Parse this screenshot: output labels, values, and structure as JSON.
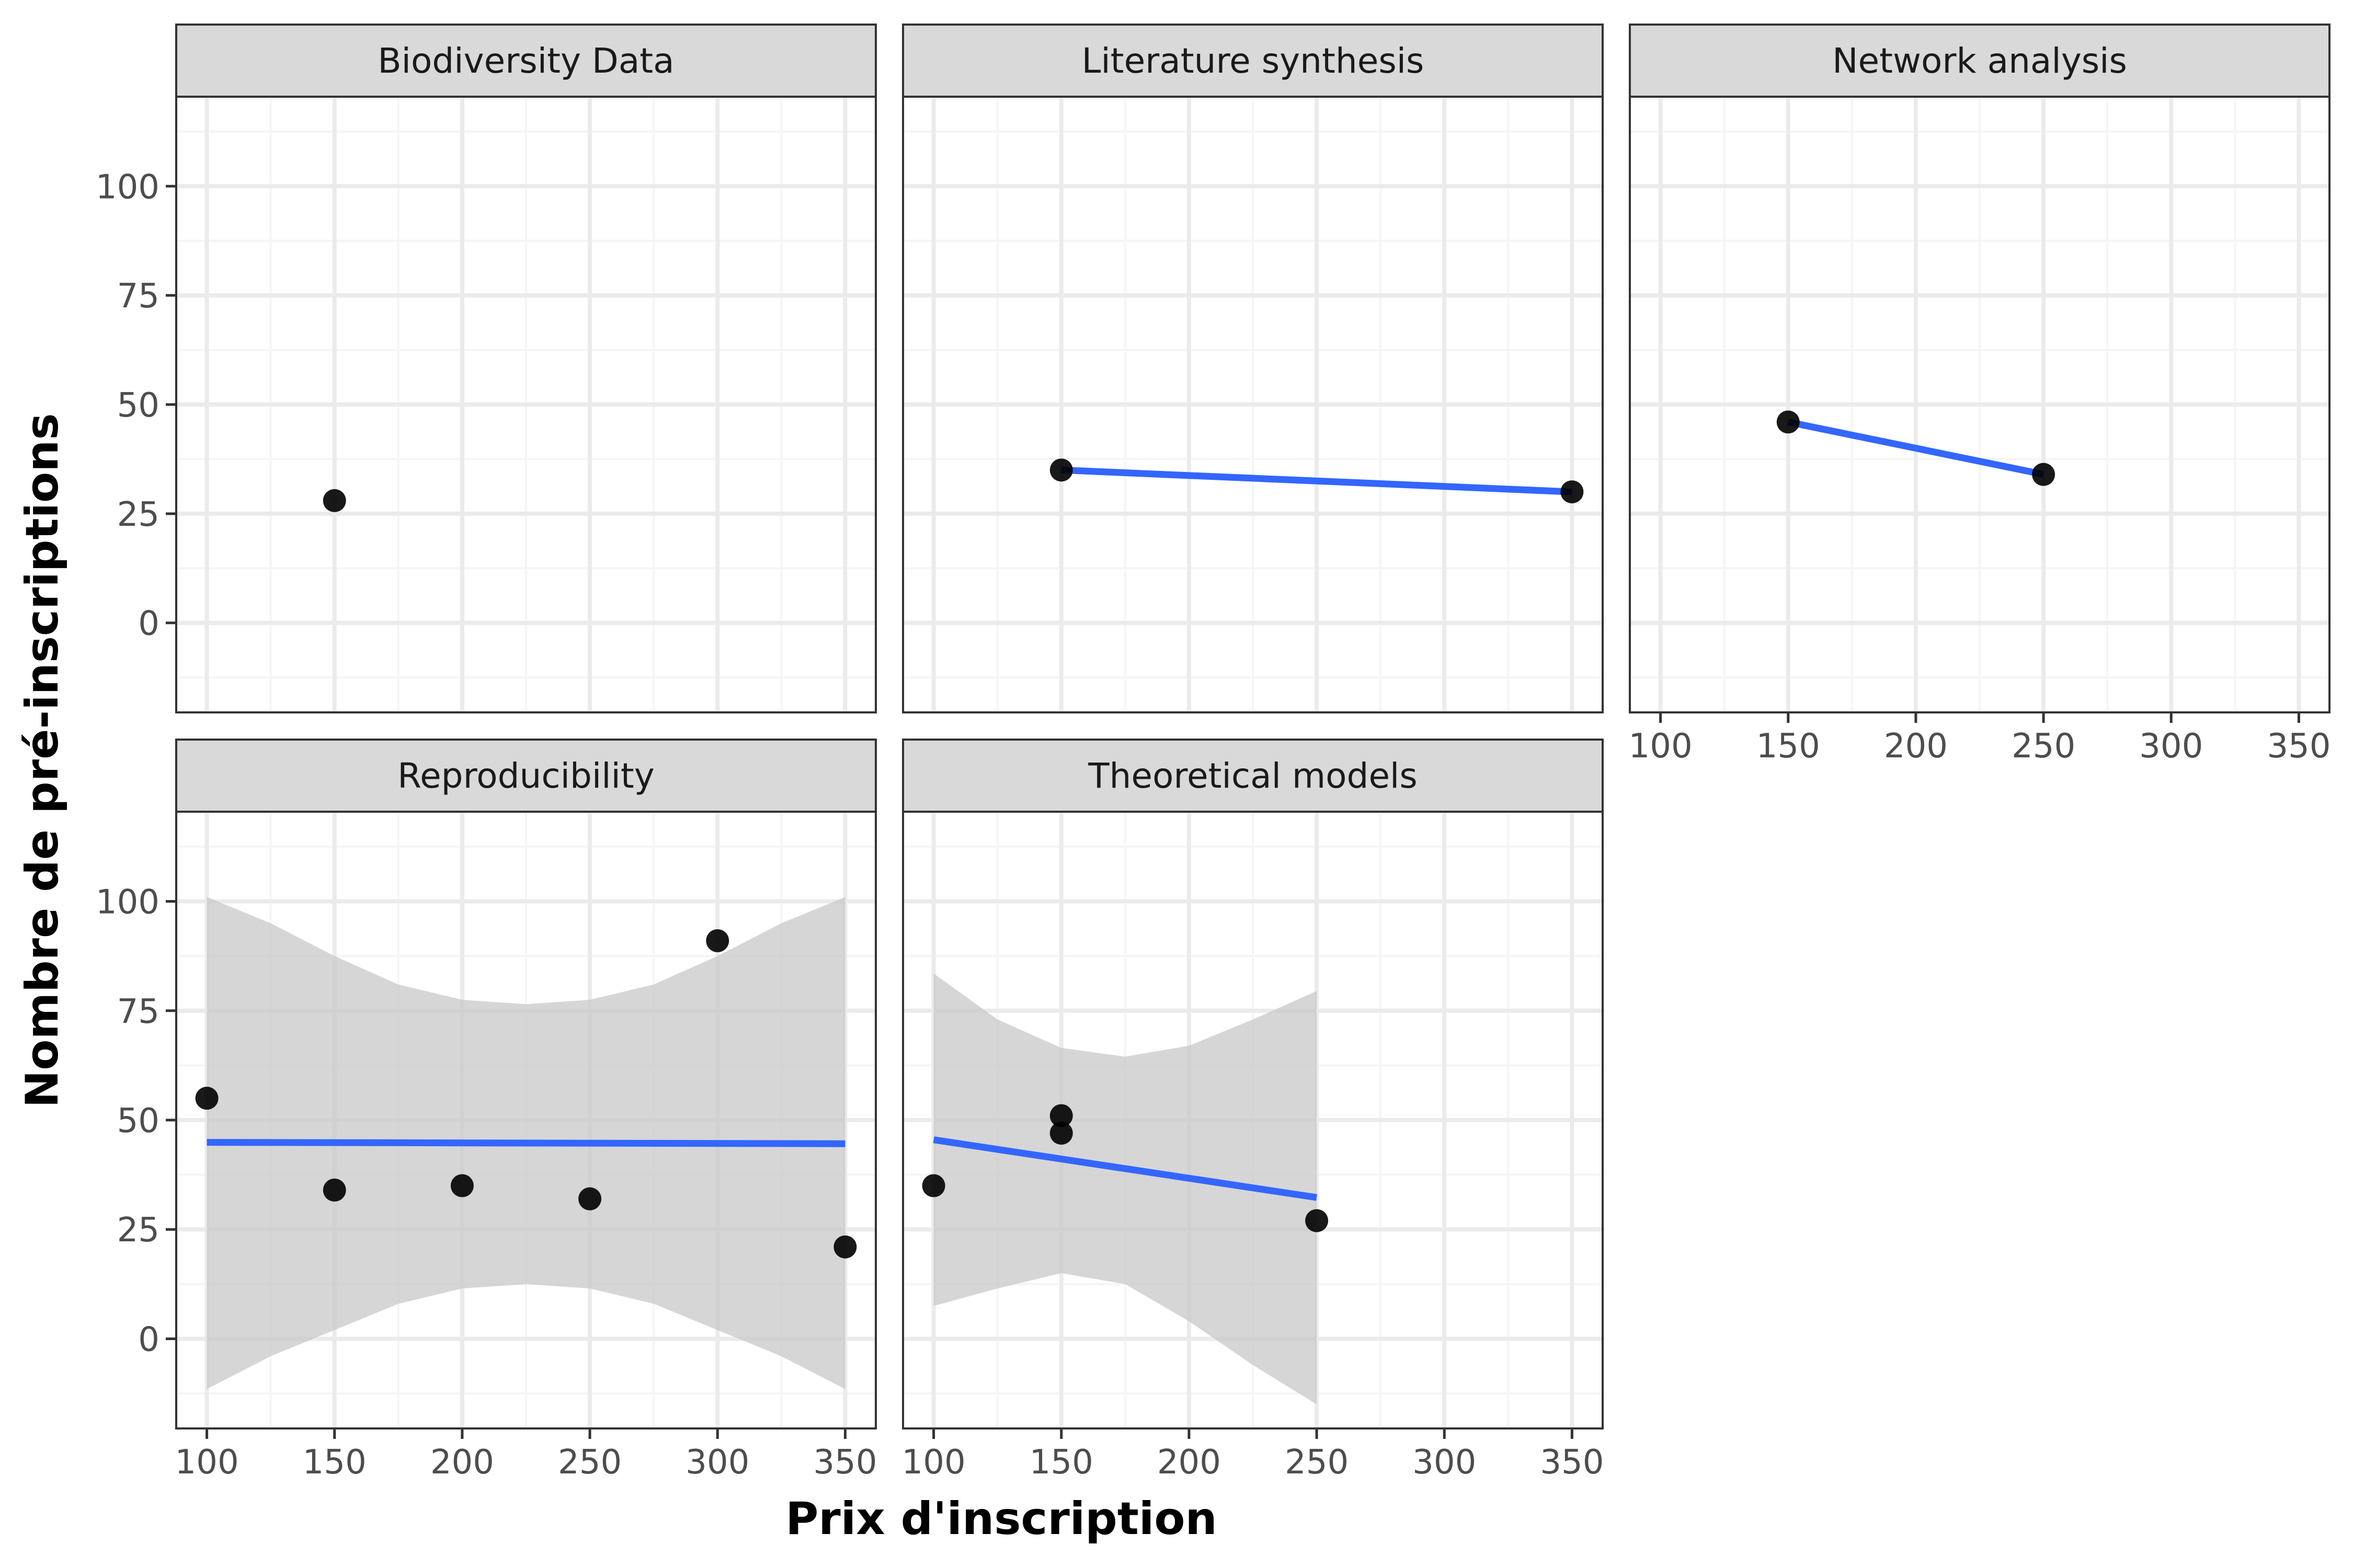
{
  "chart_data": {
    "type": "scatter",
    "xlabel": "Prix d'inscription",
    "ylabel": "Nombre de pré-inscriptions",
    "xlim": [
      88,
      362
    ],
    "ylim": [
      -20.5,
      120.5
    ],
    "x_ticks": [
      100,
      150,
      200,
      250,
      300,
      350
    ],
    "y_ticks": [
      0,
      25,
      50,
      75,
      100
    ],
    "grid": true,
    "colors": {
      "points": "#000000",
      "fit_line": "#3366ff",
      "confidence_band": "#c8c8c8",
      "strip_fill": "#d9d9d9",
      "grid_major": "#ebebeb",
      "grid_minor": "#f5f5f5",
      "panel_border": "#333333"
    },
    "panels": [
      {
        "title": "Biodiversity Data",
        "points": [
          [
            150,
            28
          ]
        ],
        "fit": null,
        "band": null
      },
      {
        "title": "Literature synthesis",
        "points": [
          [
            150,
            35
          ],
          [
            350,
            30
          ]
        ],
        "fit": [
          [
            150,
            35
          ],
          [
            350,
            30
          ]
        ],
        "band": null
      },
      {
        "title": "Network analysis",
        "points": [
          [
            150,
            46
          ],
          [
            250,
            34
          ]
        ],
        "fit": [
          [
            150,
            46
          ],
          [
            250,
            34
          ]
        ],
        "band": null
      },
      {
        "title": "Reproducibility",
        "points": [
          [
            100,
            55
          ],
          [
            150,
            34
          ],
          [
            200,
            35
          ],
          [
            250,
            32
          ],
          [
            300,
            91
          ],
          [
            350,
            21
          ]
        ],
        "fit": [
          [
            100,
            44.9
          ],
          [
            350,
            44.6
          ]
        ],
        "band": {
          "x": [
            100,
            125,
            150,
            175,
            200,
            225,
            250,
            275,
            300,
            325,
            350
          ],
          "upper": [
            101,
            95,
            87.5,
            81,
            77.5,
            76.5,
            77.5,
            81,
            87.5,
            95,
            101
          ],
          "lower": [
            -11.5,
            -4,
            2,
            8,
            11.5,
            12.5,
            11.5,
            8,
            2,
            -4,
            -11.5
          ]
        }
      },
      {
        "title": "Theoretical models",
        "points": [
          [
            100,
            35
          ],
          [
            150,
            51
          ],
          [
            150,
            47
          ],
          [
            250,
            27
          ]
        ],
        "fit": [
          [
            100,
            45.5
          ],
          [
            250,
            32.3
          ]
        ],
        "band": {
          "x": [
            100,
            125,
            150,
            175,
            200,
            225,
            250
          ],
          "upper": [
            83.5,
            73,
            66.5,
            64.5,
            67,
            73,
            79.5
          ],
          "lower": [
            7.5,
            11.5,
            15,
            12.5,
            4,
            -6,
            -15
          ]
        }
      }
    ]
  }
}
